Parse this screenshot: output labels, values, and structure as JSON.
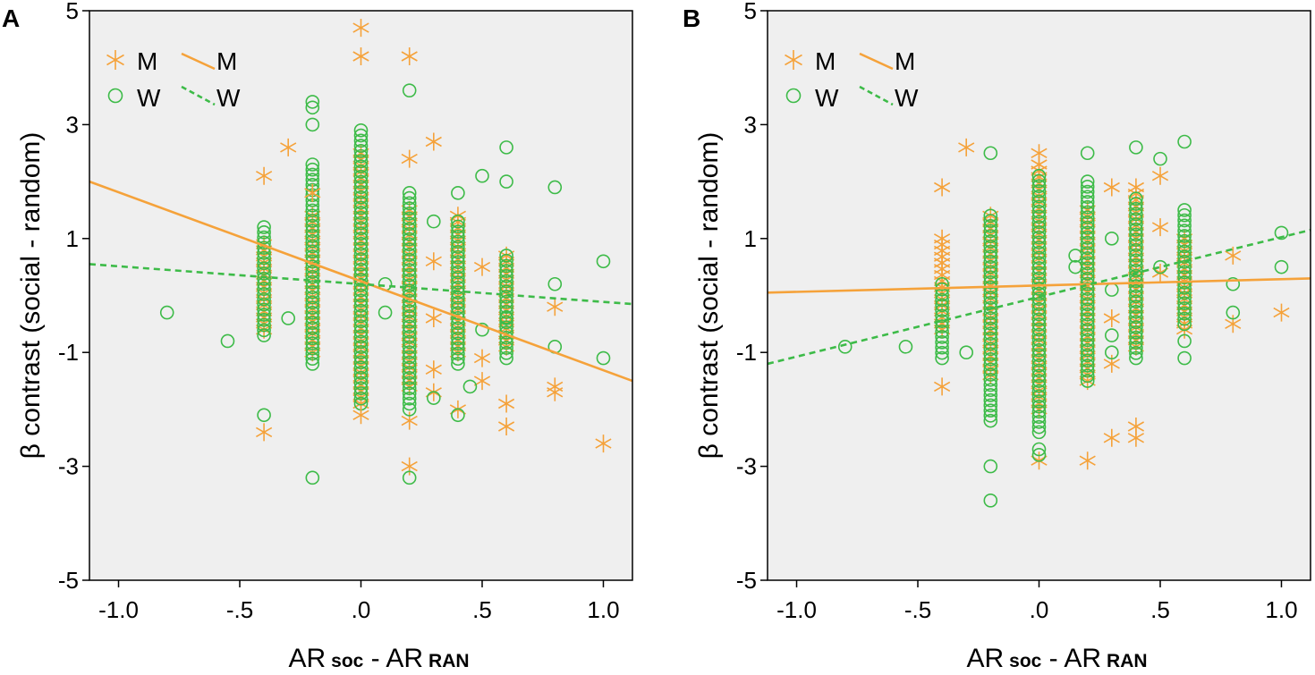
{
  "colors": {
    "men": "#f5a23a",
    "women": "#3dbb48",
    "plot_bg": "#efefef",
    "frame": "#000000"
  },
  "legend": {
    "marker_men": "M",
    "marker_women": "W",
    "line_men": "M",
    "line_women": "W",
    "star_symbol": "star-marker-icon",
    "circle_symbol": "circle-marker-icon"
  },
  "chart_data": [
    {
      "panel_label": "A",
      "type": "scatter",
      "xlabel_main": "AR",
      "xlabel_sub1": "soc",
      "xlabel_mid": " - AR",
      "xlabel_sub2": "RAN",
      "ylabel": "β contrast (social - random)",
      "xlim": [
        -1.12,
        1.12
      ],
      "ylim": [
        -5,
        5
      ],
      "xticks": [
        -1.0,
        -0.5,
        0.0,
        0.5,
        1.0
      ],
      "xtick_labels": [
        "-1.0",
        "-.5",
        ".0",
        ".5",
        "1.0"
      ],
      "yticks": [
        5,
        3,
        1,
        -1,
        -3,
        -5
      ],
      "ytick_labels": [
        "5",
        "3",
        "1",
        "-1",
        "-3",
        "-5"
      ],
      "columns": [
        {
          "x": -0.4,
          "men_ymin": -0.6,
          "men_ymax": 0.9,
          "women_ymin": -0.7,
          "women_ymax": 1.2
        },
        {
          "x": -0.2,
          "men_ymin": -1.0,
          "men_ymax": 1.4,
          "women_ymin": -1.2,
          "women_ymax": 2.3
        },
        {
          "x": 0.0,
          "men_ymin": -1.9,
          "men_ymax": 2.5,
          "women_ymin": -1.9,
          "women_ymax": 2.9
        },
        {
          "x": 0.2,
          "men_ymin": -1.6,
          "men_ymax": 1.5,
          "women_ymin": -1.9,
          "women_ymax": 1.8
        },
        {
          "x": 0.4,
          "men_ymin": -1.0,
          "men_ymax": 1.4,
          "women_ymin": -1.2,
          "women_ymax": 1.3
        },
        {
          "x": 0.6,
          "men_ymin": -0.9,
          "men_ymax": 0.7,
          "women_ymin": -1.1,
          "women_ymax": 0.7
        }
      ],
      "series": [
        {
          "name": "M",
          "marker": "star",
          "points": [
            [
              -0.4,
              2.1
            ],
            [
              -0.4,
              -2.4
            ],
            [
              -0.3,
              2.6
            ],
            [
              -0.2,
              1.8
            ],
            [
              0.0,
              4.7
            ],
            [
              0.0,
              4.2
            ],
            [
              0.0,
              -2.1
            ],
            [
              0.2,
              4.2
            ],
            [
              0.2,
              2.4
            ],
            [
              0.2,
              -2.2
            ],
            [
              0.2,
              -3.0
            ],
            [
              0.3,
              2.7
            ],
            [
              0.3,
              0.6
            ],
            [
              0.3,
              -0.4
            ],
            [
              0.3,
              -1.3
            ],
            [
              0.3,
              -1.7
            ],
            [
              0.4,
              -2.0
            ],
            [
              0.5,
              0.5
            ],
            [
              0.5,
              -1.1
            ],
            [
              0.5,
              -1.5
            ],
            [
              0.6,
              -1.9
            ],
            [
              0.6,
              -2.3
            ],
            [
              0.8,
              -0.2
            ],
            [
              0.8,
              -1.6
            ],
            [
              0.8,
              -1.7
            ],
            [
              1.0,
              -2.6
            ]
          ]
        },
        {
          "name": "W",
          "marker": "circle",
          "points": [
            [
              -0.8,
              -0.3
            ],
            [
              -0.55,
              -0.8
            ],
            [
              -0.4,
              -2.1
            ],
            [
              -0.3,
              -0.4
            ],
            [
              -0.2,
              3.4
            ],
            [
              -0.2,
              3.3
            ],
            [
              -0.2,
              3.0
            ],
            [
              -0.2,
              -3.2
            ],
            [
              0.1,
              0.2
            ],
            [
              0.1,
              -0.3
            ],
            [
              0.2,
              3.6
            ],
            [
              0.2,
              -2.0
            ],
            [
              0.2,
              -3.2
            ],
            [
              0.3,
              1.3
            ],
            [
              0.3,
              -1.8
            ],
            [
              0.4,
              1.8
            ],
            [
              0.4,
              -2.1
            ],
            [
              0.45,
              -1.6
            ],
            [
              0.5,
              2.1
            ],
            [
              0.5,
              -0.6
            ],
            [
              0.6,
              2.6
            ],
            [
              0.6,
              2.0
            ],
            [
              0.6,
              -0.4
            ],
            [
              0.8,
              1.9
            ],
            [
              0.8,
              0.2
            ],
            [
              0.8,
              -0.9
            ],
            [
              1.0,
              0.6
            ],
            [
              1.0,
              -1.1
            ]
          ]
        }
      ],
      "fit_lines": [
        {
          "name": "M",
          "style": "solid",
          "y_at_xmin": 2.0,
          "y_at_xmax": -1.5
        },
        {
          "name": "W",
          "style": "dashed",
          "y_at_xmin": 0.55,
          "y_at_xmax": -0.15
        }
      ]
    },
    {
      "panel_label": "B",
      "type": "scatter",
      "xlabel_main": "AR",
      "xlabel_sub1": "soc",
      "xlabel_mid": " - AR",
      "xlabel_sub2": "RAN",
      "ylabel": "β contrast (social - random)",
      "xlim": [
        -1.12,
        1.12
      ],
      "ylim": [
        -5,
        5
      ],
      "xticks": [
        -1.0,
        -0.5,
        0.0,
        0.5,
        1.0
      ],
      "xtick_labels": [
        "-1.0",
        "-.5",
        ".0",
        ".5",
        "1.0"
      ],
      "yticks": [
        5,
        3,
        1,
        -1,
        -3,
        -5
      ],
      "ytick_labels": [
        "5",
        "3",
        "1",
        "-1",
        "-3",
        "-5"
      ],
      "columns": [
        {
          "x": -0.4,
          "men_ymin": -0.6,
          "men_ymax": 1.0,
          "women_ymin": -1.1,
          "women_ymax": 0.2
        },
        {
          "x": -0.2,
          "men_ymin": -1.4,
          "men_ymax": 1.4,
          "women_ymin": -2.2,
          "women_ymax": 1.4
        },
        {
          "x": 0.0,
          "men_ymin": -2.0,
          "men_ymax": 2.3,
          "women_ymin": -2.4,
          "women_ymax": 2.1
        },
        {
          "x": 0.2,
          "men_ymin": -1.5,
          "men_ymax": 1.5,
          "women_ymin": -1.5,
          "women_ymax": 2.0
        },
        {
          "x": 0.4,
          "men_ymin": -0.9,
          "men_ymax": 1.9,
          "women_ymin": -1.1,
          "women_ymax": 1.7
        },
        {
          "x": 0.6,
          "men_ymin": -0.6,
          "men_ymax": 1.0,
          "women_ymin": -0.5,
          "women_ymax": 1.5
        }
      ],
      "series": [
        {
          "name": "M",
          "marker": "star",
          "points": [
            [
              -0.4,
              1.9
            ],
            [
              -0.4,
              -1.6
            ],
            [
              -0.3,
              2.6
            ],
            [
              0.0,
              2.5
            ],
            [
              0.0,
              -2.9
            ],
            [
              0.2,
              -2.9
            ],
            [
              0.3,
              1.9
            ],
            [
              0.3,
              -0.4
            ],
            [
              0.3,
              -1.2
            ],
            [
              0.3,
              -2.5
            ],
            [
              0.4,
              -2.3
            ],
            [
              0.4,
              -2.5
            ],
            [
              0.5,
              2.1
            ],
            [
              0.5,
              1.2
            ],
            [
              0.5,
              0.4
            ],
            [
              0.8,
              0.7
            ],
            [
              0.8,
              -0.5
            ],
            [
              1.0,
              -0.3
            ]
          ]
        },
        {
          "name": "W",
          "marker": "circle",
          "points": [
            [
              -0.8,
              -0.9
            ],
            [
              -0.55,
              -0.9
            ],
            [
              -0.3,
              -1.0
            ],
            [
              -0.2,
              2.5
            ],
            [
              -0.2,
              -3.0
            ],
            [
              0.0,
              -2.7
            ],
            [
              0.0,
              -2.8
            ],
            [
              0.15,
              0.7
            ],
            [
              0.15,
              0.5
            ],
            [
              0.2,
              2.5
            ],
            [
              0.3,
              1.0
            ],
            [
              0.3,
              0.1
            ],
            [
              0.3,
              -0.7
            ],
            [
              0.3,
              -1.0
            ],
            [
              0.4,
              2.6
            ],
            [
              0.5,
              2.4
            ],
            [
              0.5,
              0.5
            ],
            [
              0.6,
              2.7
            ],
            [
              0.6,
              -0.8
            ],
            [
              0.6,
              -1.1
            ],
            [
              0.8,
              0.2
            ],
            [
              0.8,
              -0.3
            ],
            [
              1.0,
              1.1
            ],
            [
              1.0,
              0.5
            ],
            [
              -0.2,
              -3.6
            ]
          ]
        }
      ],
      "fit_lines": [
        {
          "name": "M",
          "style": "solid",
          "y_at_xmin": 0.05,
          "y_at_xmax": 0.3
        },
        {
          "name": "W",
          "style": "dashed",
          "y_at_xmin": -1.2,
          "y_at_xmax": 1.15
        }
      ]
    }
  ]
}
